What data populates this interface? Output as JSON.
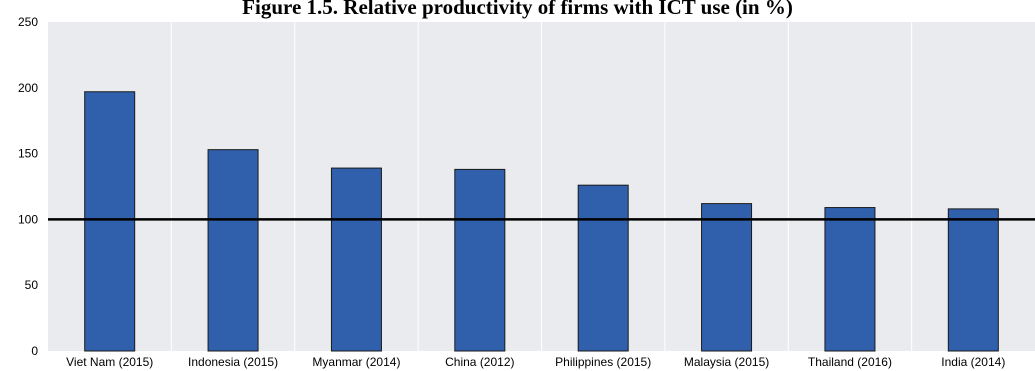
{
  "chart_data": {
    "type": "bar",
    "title": "Figure 1.5. Relative productivity of firms with ICT use (in %)",
    "xlabel": "",
    "ylabel": "",
    "categories": [
      "Viet Nam (2015)",
      "Indonesia (2015)",
      "Myanmar (2014)",
      "China (2012)",
      "Philippines (2015)",
      "Malaysia (2015)",
      "Thailand (2016)",
      "India (2014)"
    ],
    "values": [
      197,
      153,
      139,
      138,
      126,
      112,
      109,
      108
    ],
    "ylim": [
      0,
      250
    ],
    "yticks": [
      0,
      50,
      100,
      150,
      200,
      250
    ],
    "reference_line": 100,
    "grid": "vertical",
    "legend": "none",
    "colors": {
      "bar": "#3060ac",
      "bar_border": "#1a1a1a",
      "plot_background": "#e9ebee",
      "grid": "#ffffff",
      "reference_line": "#000000"
    }
  }
}
